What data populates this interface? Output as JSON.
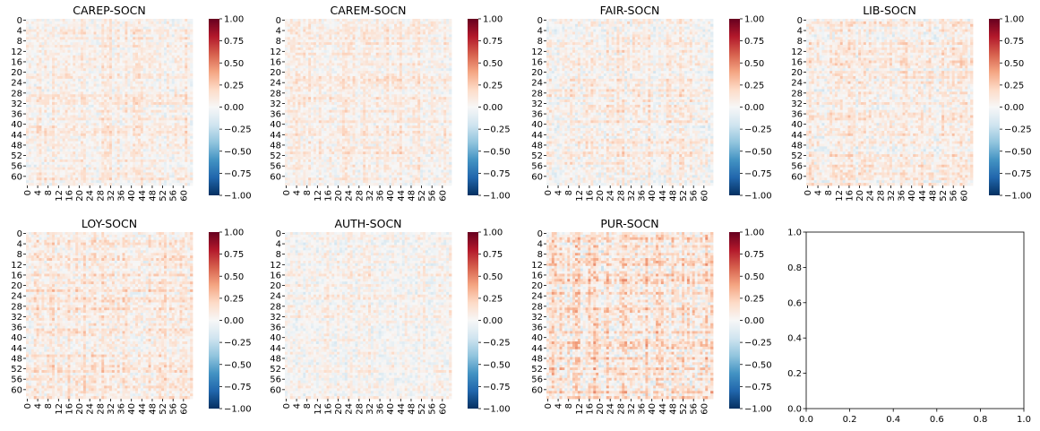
{
  "chart_data": [
    {
      "type": "heatmap",
      "title": "CAREP-SOCN",
      "size": 64,
      "tick_step": 4,
      "vmin": -1.0,
      "vmax": 1.0,
      "colorbar_ticks": [
        "1.00",
        "0.75",
        "0.50",
        "0.25",
        "0.00",
        "−0.25",
        "−0.50",
        "−0.75",
        "−1.00"
      ],
      "colormap": "RdBu_r",
      "values_note": "64x64 correlation matrix; individual cell values not printed"
    },
    {
      "type": "heatmap",
      "title": "CAREM-SOCN",
      "size": 64,
      "tick_step": 4,
      "vmin": -1.0,
      "vmax": 1.0,
      "colorbar_ticks": [
        "1.00",
        "0.75",
        "0.50",
        "0.25",
        "0.00",
        "−0.25",
        "−0.50",
        "−0.75",
        "−1.00"
      ],
      "colormap": "RdBu_r"
    },
    {
      "type": "heatmap",
      "title": "FAIR-SOCN",
      "size": 64,
      "tick_step": 4,
      "vmin": -1.0,
      "vmax": 1.0,
      "colorbar_ticks": [
        "1.00",
        "0.75",
        "0.50",
        "0.25",
        "0.00",
        "−0.25",
        "−0.50",
        "−0.75",
        "−1.00"
      ],
      "colormap": "RdBu_r"
    },
    {
      "type": "heatmap",
      "title": "LIB-SOCN",
      "size": 64,
      "tick_step": 4,
      "vmin": -1.0,
      "vmax": 1.0,
      "colorbar_ticks": [
        "1.00",
        "0.75",
        "0.50",
        "0.25",
        "0.00",
        "−0.25",
        "−0.50",
        "−0.75",
        "−1.00"
      ],
      "colormap": "RdBu_r"
    },
    {
      "type": "heatmap",
      "title": "LOY-SOCN",
      "size": 64,
      "tick_step": 4,
      "vmin": -1.0,
      "vmax": 1.0,
      "colorbar_ticks": [
        "1.00",
        "0.75",
        "0.50",
        "0.25",
        "0.00",
        "−0.25",
        "−0.50",
        "−0.75",
        "−1.00"
      ],
      "colormap": "RdBu_r"
    },
    {
      "type": "heatmap",
      "title": "AUTH-SOCN",
      "size": 64,
      "tick_step": 4,
      "vmin": -1.0,
      "vmax": 1.0,
      "colorbar_ticks": [
        "1.00",
        "0.75",
        "0.50",
        "0.25",
        "0.00",
        "−0.25",
        "−0.50",
        "−0.75",
        "−1.00"
      ],
      "colormap": "RdBu_r"
    },
    {
      "type": "heatmap",
      "title": "PUR-SOCN",
      "size": 64,
      "tick_step": 4,
      "vmin": -1.0,
      "vmax": 1.0,
      "colorbar_ticks": [
        "1.00",
        "0.75",
        "0.50",
        "0.25",
        "0.00",
        "−0.25",
        "−0.50",
        "−0.75",
        "−1.00"
      ],
      "colormap": "RdBu_r"
    },
    {
      "type": "empty-axes",
      "title": "",
      "xlim": [
        0.0,
        1.0
      ],
      "ylim": [
        0.0,
        1.0
      ],
      "xticks": [
        "0.0",
        "0.2",
        "0.4",
        "0.6",
        "0.8",
        "1.0"
      ],
      "yticks": [
        "0.0",
        "0.2",
        "0.4",
        "0.6",
        "0.8",
        "1.0"
      ]
    }
  ],
  "colors": {
    "cmap_stops": [
      "#053061",
      "#2166ac",
      "#4393c3",
      "#92c5de",
      "#d1e5f0",
      "#f7f7f7",
      "#fddbc7",
      "#f4a582",
      "#d6604d",
      "#b2182b",
      "#67001f"
    ],
    "text": "#000000",
    "background": "#ffffff"
  }
}
